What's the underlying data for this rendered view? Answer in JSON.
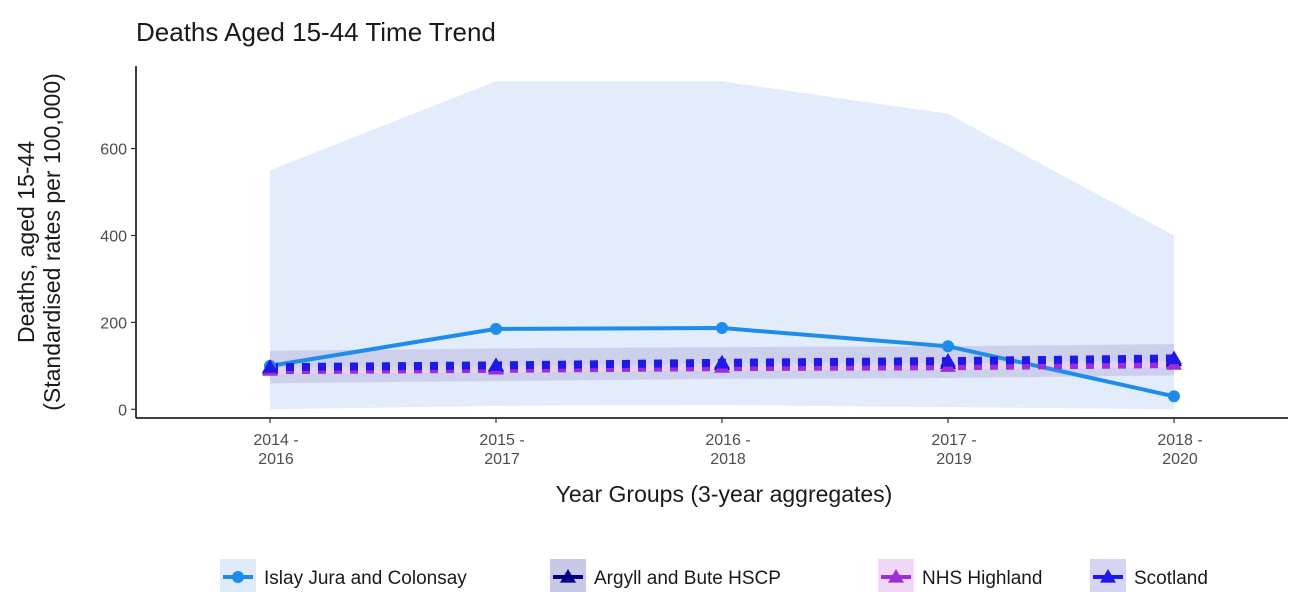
{
  "chart_data": {
    "type": "line",
    "title": "Deaths Aged 15-44 Time Trend",
    "xlabel": "Year Groups (3-year aggregates)",
    "ylabel": [
      "Deaths, aged 15-44",
      "(Standardised rates per 100,000)"
    ],
    "categories": [
      [
        "2014 -",
        "2016"
      ],
      [
        "2015 -",
        "2017"
      ],
      [
        "2016 -",
        "2018"
      ],
      [
        "2017 -",
        "2019"
      ],
      [
        "2018 -",
        "2020"
      ]
    ],
    "yticks": [
      "0",
      "200",
      "400",
      "600"
    ],
    "ylim": [
      -20,
      790
    ],
    "legend_position": "bottom",
    "grid": false,
    "series": [
      {
        "name": "Islay Jura and Colonsay",
        "values": [
          100,
          185,
          187,
          145,
          30
        ],
        "ci_lower": [
          0,
          8,
          10,
          5,
          0
        ],
        "ci_upper": [
          550,
          755,
          755,
          680,
          400
        ],
        "color": "#1f8ceb",
        "band_color": "#dde9f9",
        "marker": "circle",
        "linestyle": "solid"
      },
      {
        "name": "Argyll and Bute HSCP",
        "values": [
          95,
          98,
          103,
          106,
          112
        ],
        "ci_lower": [
          60,
          65,
          70,
          72,
          78
        ],
        "ci_upper": [
          135,
          140,
          143,
          145,
          150
        ],
        "color": "#000080",
        "band_color": "#c2c2e6",
        "marker": "triangle",
        "linestyle": "dotted"
      },
      {
        "name": "NHS Highland",
        "values": [
          90,
          93,
          97,
          99,
          104
        ],
        "ci_lower": [
          82,
          85,
          89,
          91,
          96
        ],
        "ci_upper": [
          98,
          101,
          105,
          107,
          112
        ],
        "color": "#9d2dd6",
        "band_color": "#ecd4f5",
        "marker": "triangle",
        "linestyle": "dotted"
      },
      {
        "name": "Scotland",
        "values": [
          97,
          101,
          107,
          111,
          117
        ],
        "ci_lower": [
          95,
          99,
          105,
          109,
          115
        ],
        "ci_upper": [
          99,
          103,
          109,
          113,
          119
        ],
        "color": "#1f18e6",
        "band_color": "#d0d0f2",
        "marker": "triangle",
        "linestyle": "dotted"
      }
    ]
  }
}
